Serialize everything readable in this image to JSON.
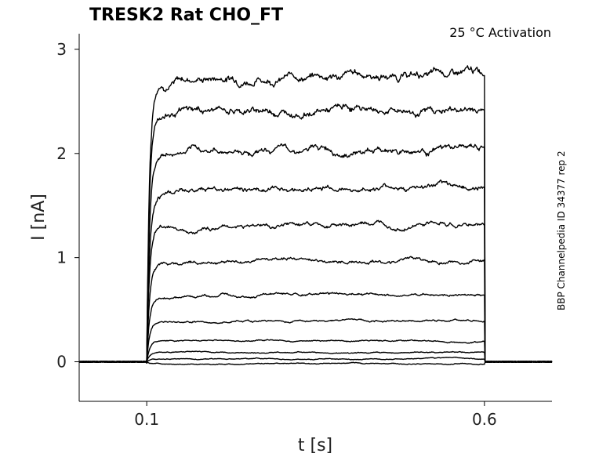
{
  "chart_data": {
    "type": "line",
    "title": "TRESK2  Rat  CHO_FT",
    "annotation": "25 °C  Activation",
    "side_label": "BBP Channelpedia ID 34377 rep 2",
    "xlabel": "t [s]",
    "ylabel": "I [nA]",
    "xlim": [
      0.0,
      0.7
    ],
    "ylim": [
      -0.38,
      3.15
    ],
    "xticks": [
      0.1,
      0.6
    ],
    "xtick_labels": [
      "0.1",
      "0.6"
    ],
    "yticks": [
      0,
      1,
      2,
      3
    ],
    "ytick_labels": [
      "0",
      "1",
      "2",
      "3"
    ],
    "grid": false,
    "legend": "none",
    "step_on": 0.1,
    "step_off": 0.6,
    "series": [
      {
        "steady_nA": 2.75,
        "peak_early_nA": 2.68
      },
      {
        "steady_nA": 2.42,
        "peak_early_nA": 2.35
      },
      {
        "steady_nA": 2.04,
        "peak_early_nA": 1.96
      },
      {
        "steady_nA": 1.67,
        "peak_early_nA": 1.6
      },
      {
        "steady_nA": 1.31,
        "peak_early_nA": 1.26
      },
      {
        "steady_nA": 0.97,
        "peak_early_nA": 0.92
      },
      {
        "steady_nA": 0.64,
        "peak_early_nA": 0.61
      },
      {
        "steady_nA": 0.4,
        "peak_early_nA": 0.37
      },
      {
        "steady_nA": 0.2,
        "peak_early_nA": 0.19
      },
      {
        "steady_nA": 0.09,
        "peak_early_nA": 0.09
      },
      {
        "steady_nA": 0.03,
        "peak_early_nA": 0.03
      },
      {
        "steady_nA": -0.02,
        "peak_early_nA": -0.02
      }
    ]
  }
}
